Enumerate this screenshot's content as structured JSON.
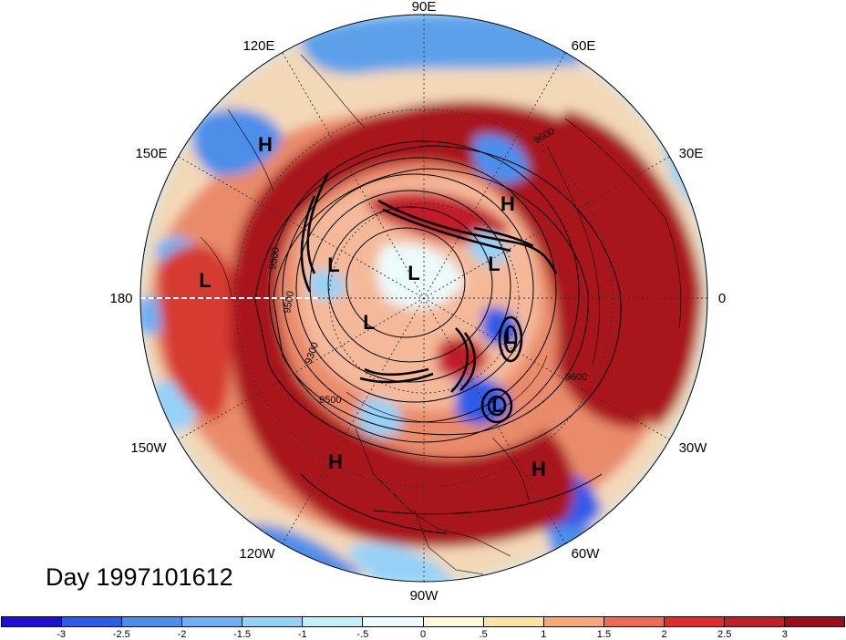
{
  "title": "Day 1997101612",
  "lon_labels": {
    "top": "90E",
    "top_right": "60E",
    "right_upper": "30E",
    "right": "0",
    "right_lower": "30W",
    "bottom_right": "60W",
    "bottom": "90W",
    "bottom_left": "120W",
    "left_lower": "150W",
    "left": "180",
    "left_upper": "150E",
    "top_left": "120E"
  },
  "pressure_centers": {
    "highs": [
      "H",
      "H",
      "H",
      "H"
    ],
    "lows": [
      "L",
      "L",
      "L",
      "L",
      "L",
      "L",
      "L"
    ]
  },
  "contour_labels": [
    "9600",
    "9500",
    "9500",
    "9300",
    "9500",
    "9600",
    "9600"
  ],
  "colorbar": {
    "ticks": [
      "-3",
      "-2.5",
      "-2",
      "-1.5",
      "-1",
      "-.5",
      "0",
      ".5",
      "1",
      "1.5",
      "2",
      "2.5",
      "3"
    ],
    "colors": [
      "#1f10d6",
      "#2f5be8",
      "#4b8fec",
      "#6fb0f2",
      "#95d2f7",
      "#c6effa",
      "#ecfbfc",
      "#fffbd9",
      "#fde4a4",
      "#f7a876",
      "#ee6a55",
      "#e12a2c",
      "#c21f2a",
      "#9d0e1c"
    ]
  }
}
